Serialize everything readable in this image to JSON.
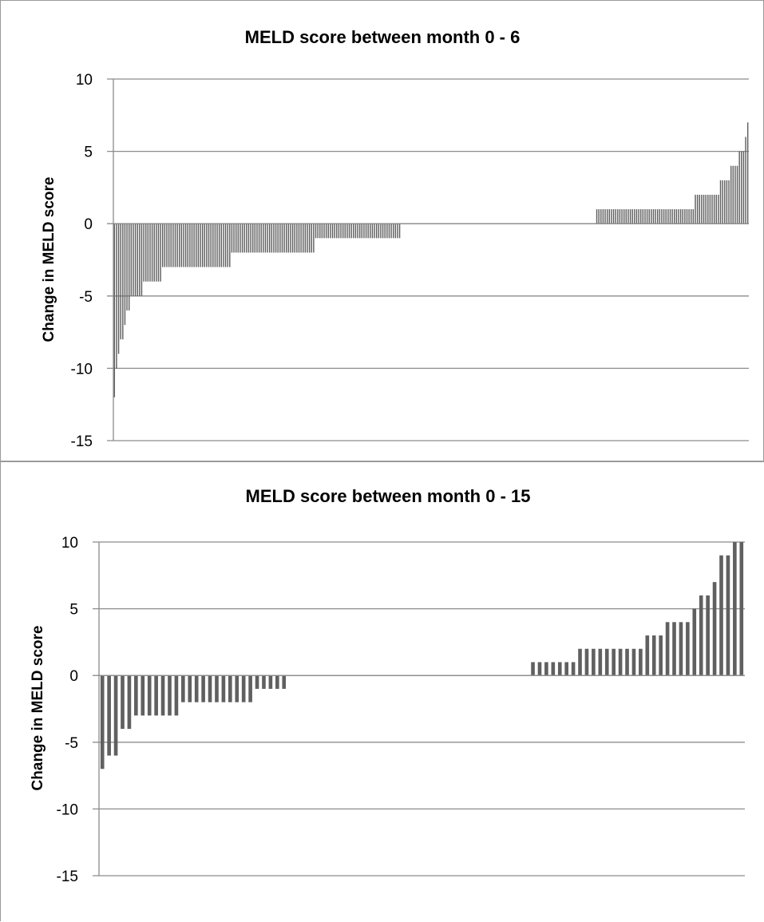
{
  "chart_data": [
    {
      "type": "bar",
      "title": "MELD score between month 0 - 6",
      "xlabel": "",
      "ylabel": "Change in MELD score",
      "ylim": [
        -15,
        10
      ],
      "yticks": [
        10,
        5,
        0,
        -5,
        -10,
        -15
      ],
      "grid": true,
      "legend": "none",
      "bar_color": "#606060",
      "values": [
        -12,
        -10,
        -9,
        -8,
        -8,
        -7,
        -6,
        -6,
        -5,
        -5,
        -5,
        -5,
        -5,
        -5,
        -4,
        -4,
        -4,
        -4,
        -4,
        -4,
        -4,
        -4,
        -4,
        -3,
        -3,
        -3,
        -3,
        -3,
        -3,
        -3,
        -3,
        -3,
        -3,
        -3,
        -3,
        -3,
        -3,
        -3,
        -3,
        -3,
        -3,
        -3,
        -3,
        -3,
        -3,
        -3,
        -3,
        -3,
        -3,
        -3,
        -3,
        -3,
        -3,
        -3,
        -3,
        -3,
        -2,
        -2,
        -2,
        -2,
        -2,
        -2,
        -2,
        -2,
        -2,
        -2,
        -2,
        -2,
        -2,
        -2,
        -2,
        -2,
        -2,
        -2,
        -2,
        -2,
        -2,
        -2,
        -2,
        -2,
        -2,
        -2,
        -2,
        -2,
        -2,
        -2,
        -2,
        -2,
        -2,
        -2,
        -2,
        -2,
        -2,
        -2,
        -2,
        -2,
        -1,
        -1,
        -1,
        -1,
        -1,
        -1,
        -1,
        -1,
        -1,
        -1,
        -1,
        -1,
        -1,
        -1,
        -1,
        -1,
        -1,
        -1,
        -1,
        -1,
        -1,
        -1,
        -1,
        -1,
        -1,
        -1,
        -1,
        -1,
        -1,
        -1,
        -1,
        -1,
        -1,
        -1,
        -1,
        -1,
        -1,
        -1,
        -1,
        -1,
        -1,
        0,
        0,
        0,
        0,
        0,
        0,
        0,
        0,
        0,
        0,
        0,
        0,
        0,
        0,
        0,
        0,
        0,
        0,
        0,
        0,
        0,
        0,
        0,
        0,
        0,
        0,
        0,
        0,
        0,
        0,
        0,
        0,
        0,
        0,
        0,
        0,
        0,
        0,
        0,
        0,
        0,
        0,
        0,
        0,
        0,
        0,
        0,
        0,
        0,
        0,
        0,
        0,
        0,
        0,
        0,
        0,
        0,
        0,
        0,
        0,
        0,
        0,
        0,
        0,
        0,
        0,
        0,
        0,
        0,
        0,
        0,
        0,
        0,
        0,
        0,
        0,
        0,
        0,
        0,
        0,
        0,
        0,
        0,
        0,
        0,
        0,
        0,
        0,
        0,
        0,
        0,
        0,
        0,
        1,
        1,
        1,
        1,
        1,
        1,
        1,
        1,
        1,
        1,
        1,
        1,
        1,
        1,
        1,
        1,
        1,
        1,
        1,
        1,
        1,
        1,
        1,
        1,
        1,
        1,
        1,
        1,
        1,
        1,
        1,
        1,
        1,
        1,
        1,
        1,
        1,
        1,
        1,
        1,
        1,
        1,
        1,
        1,
        1,
        1,
        1,
        2,
        2,
        2,
        2,
        2,
        2,
        2,
        2,
        2,
        2,
        2,
        2,
        3,
        3,
        3,
        3,
        3,
        4,
        4,
        4,
        4,
        5,
        5,
        5,
        6,
        7
      ]
    },
    {
      "type": "bar",
      "title": "MELD score between month 0 - 15",
      "xlabel": "",
      "ylabel": "Change in MELD score",
      "ylim": [
        -15,
        10
      ],
      "yticks": [
        10,
        5,
        0,
        -5,
        -10,
        -15
      ],
      "grid": true,
      "legend": "none",
      "bar_color": "#606060",
      "values": [
        -7,
        -6,
        -6,
        -4,
        -4,
        -3,
        -3,
        -3,
        -3,
        -3,
        -3,
        -3,
        -2,
        -2,
        -2,
        -2,
        -2,
        -2,
        -2,
        -2,
        -2,
        -2,
        -2,
        -1,
        -1,
        -1,
        -1,
        -1,
        0,
        0,
        0,
        0,
        0,
        0,
        0,
        0,
        0,
        0,
        0,
        0,
        0,
        0,
        0,
        0,
        0,
        0,
        0,
        0,
        0,
        0,
        0,
        0,
        0,
        0,
        0,
        0,
        0,
        0,
        0,
        0,
        0,
        0,
        0,
        0,
        1,
        1,
        1,
        1,
        1,
        1,
        1,
        2,
        2,
        2,
        2,
        2,
        2,
        2,
        2,
        2,
        2,
        3,
        3,
        3,
        4,
        4,
        4,
        4,
        5,
        6,
        6,
        7,
        9,
        9,
        10,
        10
      ]
    }
  ]
}
